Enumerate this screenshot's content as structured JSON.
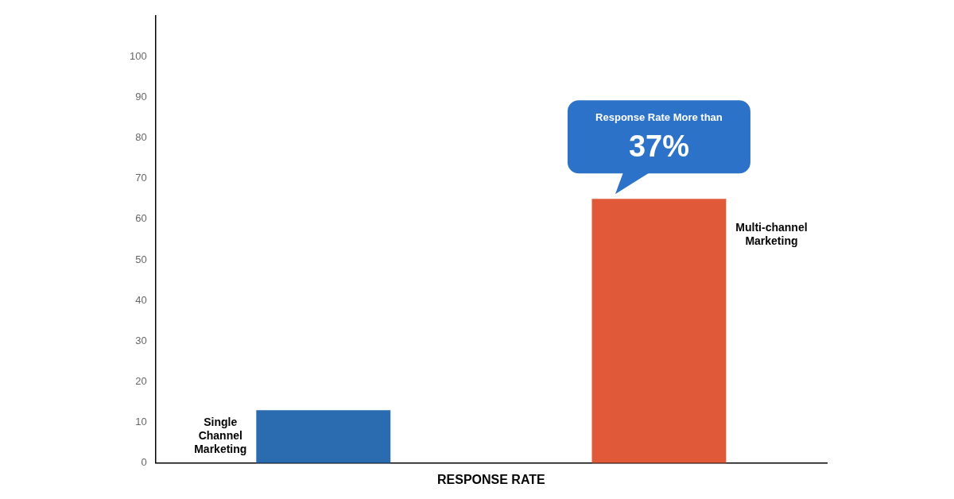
{
  "chart_data": {
    "type": "bar",
    "categories": [
      "Single\nChannel\nMarketing",
      "Multi-channel\nMarketing"
    ],
    "values": [
      13,
      65
    ],
    "colors": [
      "#2B6CB0",
      "#E05A3A"
    ],
    "xlabel": "RESPONSE RATE",
    "ylim": [
      0,
      110
    ],
    "yticks": [
      0,
      10,
      20,
      30,
      40,
      50,
      60,
      70,
      80,
      90,
      100
    ],
    "grid": false,
    "tick_labels": "y",
    "annotations": [
      {
        "text": [
          "Response Rate More than",
          "37%"
        ],
        "color": "#2B72C8"
      }
    ]
  }
}
